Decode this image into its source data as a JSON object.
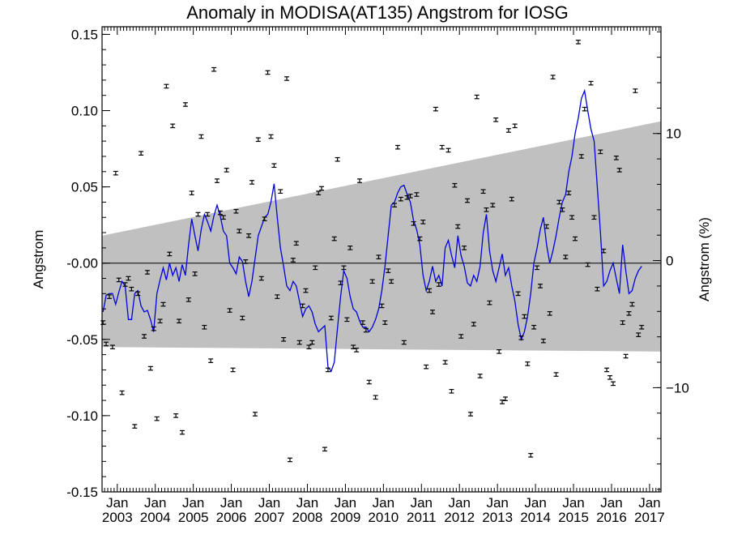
{
  "chart_data": {
    "type": "scatter",
    "title": "Anomaly in MODISA(AT135) Angstrom for IOSG",
    "ylabel": "Angstrom",
    "ylabel_right": "Angstrom (%)",
    "ylim": [
      -0.15,
      0.155
    ],
    "ylim_right_pct": [
      -18.2,
      18.4
    ],
    "yticks": [
      0.15,
      0.1,
      0.05,
      0.0,
      -0.05,
      -0.1,
      -0.15
    ],
    "ytick_labels": [
      "0.15",
      "0.10",
      "0.05",
      "-0.00",
      "-0.05",
      "-0.10",
      "-0.15"
    ],
    "yticks_right": [
      10,
      0,
      -10
    ],
    "ytick_labels_right": [
      "10",
      "0",
      "−10"
    ],
    "xlim": [
      2002.6,
      2017.3
    ],
    "xtick_month_label": "Jan",
    "xtick_years": [
      "2003",
      "2004",
      "2005",
      "2006",
      "2007",
      "2008",
      "2009",
      "2010",
      "2011",
      "2012",
      "2013",
      "2014",
      "2015",
      "2016",
      "2017"
    ],
    "grid": false,
    "colors": {
      "line": "#0000dd",
      "band": "#c0c0c0",
      "points": "#000000"
    },
    "band": {
      "x": [
        2002.6,
        2017.3
      ],
      "upper": [
        0.018,
        0.093
      ],
      "lower": [
        -0.055,
        -0.058
      ]
    },
    "points": [
      [
        2002.625,
        -0.039
      ],
      [
        2002.708,
        -0.053
      ],
      [
        2002.792,
        -0.022
      ],
      [
        2002.875,
        -0.055
      ],
      [
        2002.958,
        0.059
      ],
      [
        2003.042,
        -0.011
      ],
      [
        2003.125,
        -0.085
      ],
      [
        2003.208,
        -0.014
      ],
      [
        2003.292,
        -0.01
      ],
      [
        2003.375,
        -0.017
      ],
      [
        2003.458,
        -0.107
      ],
      [
        2003.542,
        -0.02
      ],
      [
        2003.625,
        0.072
      ],
      [
        2003.708,
        -0.048
      ],
      [
        2003.792,
        -0.006
      ],
      [
        2003.875,
        -0.069
      ],
      [
        2003.958,
        -0.043
      ],
      [
        2004.042,
        -0.102
      ],
      [
        2004.125,
        -0.038
      ],
      [
        2004.208,
        -0.027
      ],
      [
        2004.292,
        0.116
      ],
      [
        2004.375,
        0.006
      ],
      [
        2004.458,
        0.09
      ],
      [
        2004.542,
        -0.1
      ],
      [
        2004.625,
        -0.038
      ],
      [
        2004.708,
        -0.111
      ],
      [
        2004.792,
        0.104
      ],
      [
        2004.875,
        -0.024
      ],
      [
        2004.958,
        0.046
      ],
      [
        2005.042,
        -0.007
      ],
      [
        2005.125,
        0.032
      ],
      [
        2005.208,
        0.083
      ],
      [
        2005.292,
        -0.042
      ],
      [
        2005.375,
        0.032
      ],
      [
        2005.458,
        -0.064
      ],
      [
        2005.542,
        0.127
      ],
      [
        2005.625,
        0.054
      ],
      [
        2005.708,
        0.033
      ],
      [
        2005.792,
        0.03
      ],
      [
        2005.875,
        0.061
      ],
      [
        2005.958,
        -0.031
      ],
      [
        2006.042,
        -0.07
      ],
      [
        2006.125,
        0.034
      ],
      [
        2006.208,
        0.021
      ],
      [
        2006.292,
        -0.036
      ],
      [
        2006.375,
        0.001
      ],
      [
        2006.458,
        0.018
      ],
      [
        2006.542,
        0.053
      ],
      [
        2006.625,
        -0.099
      ],
      [
        2006.708,
        0.081
      ],
      [
        2006.792,
        -0.01
      ],
      [
        2006.875,
        0.029
      ],
      [
        2006.958,
        0.125
      ],
      [
        2007.042,
        0.083
      ],
      [
        2007.125,
        0.064
      ],
      [
        2007.208,
        -0.022
      ],
      [
        2007.292,
        0.047
      ],
      [
        2007.375,
        -0.05
      ],
      [
        2007.458,
        0.121
      ],
      [
        2007.542,
        -0.129
      ],
      [
        2007.625,
        0.002
      ],
      [
        2007.708,
        0.013
      ],
      [
        2007.792,
        -0.052
      ],
      [
        2007.875,
        -0.028
      ],
      [
        2007.958,
        -0.018
      ],
      [
        2008.042,
        -0.055
      ],
      [
        2008.125,
        -0.052
      ],
      [
        2008.208,
        -0.003
      ],
      [
        2008.292,
        0.046
      ],
      [
        2008.375,
        0.049
      ],
      [
        2008.458,
        -0.122
      ],
      [
        2008.542,
        -0.07
      ],
      [
        2008.625,
        -0.036
      ],
      [
        2008.708,
        0.016
      ],
      [
        2008.792,
        0.068
      ],
      [
        2008.875,
        -0.013
      ],
      [
        2008.958,
        -0.003
      ],
      [
        2009.042,
        -0.037
      ],
      [
        2009.125,
        0.01
      ],
      [
        2009.208,
        -0.055
      ],
      [
        2009.292,
        -0.057
      ],
      [
        2009.375,
        0.054
      ],
      [
        2009.458,
        -0.039
      ],
      [
        2009.542,
        -0.044
      ],
      [
        2009.625,
        -0.078
      ],
      [
        2009.708,
        -0.012
      ],
      [
        2009.792,
        -0.088
      ],
      [
        2009.875,
        0.004
      ],
      [
        2009.958,
        -0.028
      ],
      [
        2010.042,
        -0.039
      ],
      [
        2010.125,
        -0.005
      ],
      [
        2010.208,
        -0.012
      ],
      [
        2010.292,
        0.038
      ],
      [
        2010.375,
        0.076
      ],
      [
        2010.458,
        0.042
      ],
      [
        2010.542,
        -0.052
      ],
      [
        2010.625,
        0.043
      ],
      [
        2010.708,
        0.044
      ],
      [
        2010.792,
        0.026
      ],
      [
        2010.875,
        0.045
      ],
      [
        2010.958,
        0.016
      ],
      [
        2011.042,
        0.027
      ],
      [
        2011.125,
        -0.068
      ],
      [
        2011.208,
        -0.018
      ],
      [
        2011.292,
        -0.032
      ],
      [
        2011.375,
        0.101
      ],
      [
        2011.458,
        -0.014
      ],
      [
        2011.542,
        0.076
      ],
      [
        2011.625,
        -0.065
      ],
      [
        2011.708,
        0.074
      ],
      [
        2011.792,
        -0.084
      ],
      [
        2011.875,
        0.051
      ],
      [
        2011.958,
        0.024
      ],
      [
        2012.042,
        -0.048
      ],
      [
        2012.125,
        0.01
      ],
      [
        2012.208,
        0.041
      ],
      [
        2012.292,
        -0.099
      ],
      [
        2012.375,
        -0.04
      ],
      [
        2012.458,
        0.109
      ],
      [
        2012.542,
        -0.074
      ],
      [
        2012.625,
        0.047
      ],
      [
        2012.708,
        0.035
      ],
      [
        2012.792,
        -0.026
      ],
      [
        2012.875,
        0.038
      ],
      [
        2012.958,
        0.094
      ],
      [
        2013.042,
        -0.058
      ],
      [
        2013.125,
        -0.091
      ],
      [
        2013.208,
        -0.089
      ],
      [
        2013.292,
        0.087
      ],
      [
        2013.375,
        0.042
      ],
      [
        2013.458,
        0.09
      ],
      [
        2013.542,
        -0.02
      ],
      [
        2013.625,
        -0.049
      ],
      [
        2013.708,
        -0.035
      ],
      [
        2013.792,
        -0.066
      ],
      [
        2013.875,
        -0.126
      ],
      [
        2013.958,
        -0.042
      ],
      [
        2014.042,
        -0.003
      ],
      [
        2014.125,
        -0.015
      ],
      [
        2014.208,
        -0.051
      ],
      [
        2014.292,
        0.024
      ],
      [
        2014.375,
        -0.033
      ],
      [
        2014.458,
        0.122
      ],
      [
        2014.542,
        -0.073
      ],
      [
        2014.625,
        0.04
      ],
      [
        2014.708,
        0.035
      ],
      [
        2014.792,
        0.004
      ],
      [
        2014.875,
        0.046
      ],
      [
        2014.958,
        0.03
      ],
      [
        2015.042,
        0.016
      ],
      [
        2015.125,
        0.145
      ],
      [
        2015.208,
        0.07
      ],
      [
        2015.292,
        0.101
      ],
      [
        2015.375,
        -0.001
      ],
      [
        2015.458,
        0.118
      ],
      [
        2015.542,
        0.03
      ],
      [
        2015.625,
        -0.017
      ],
      [
        2015.708,
        0.073
      ],
      [
        2015.792,
        0.008
      ],
      [
        2015.875,
        -0.07
      ],
      [
        2015.958,
        -0.075
      ],
      [
        2016.042,
        -0.079
      ],
      [
        2016.125,
        0.069
      ],
      [
        2016.208,
        0.061
      ],
      [
        2016.292,
        -0.039
      ],
      [
        2016.375,
        -0.061
      ],
      [
        2016.458,
        -0.033
      ],
      [
        2016.542,
        -0.027
      ],
      [
        2016.625,
        0.113
      ],
      [
        2016.708,
        -0.047
      ],
      [
        2016.792,
        -0.042
      ]
    ],
    "line": [
      [
        2002.625,
        -0.032
      ],
      [
        2002.708,
        -0.021
      ],
      [
        2002.792,
        -0.02
      ],
      [
        2002.875,
        -0.02
      ],
      [
        2002.958,
        -0.027
      ],
      [
        2003.042,
        -0.019
      ],
      [
        2003.125,
        -0.012
      ],
      [
        2003.208,
        -0.015
      ],
      [
        2003.292,
        -0.037
      ],
      [
        2003.375,
        -0.037
      ],
      [
        2003.458,
        -0.02
      ],
      [
        2003.542,
        -0.018
      ],
      [
        2003.625,
        -0.028
      ],
      [
        2003.708,
        -0.032
      ],
      [
        2003.792,
        -0.031
      ],
      [
        2003.875,
        -0.037
      ],
      [
        2003.958,
        -0.045
      ],
      [
        2004.042,
        -0.02
      ],
      [
        2004.125,
        -0.011
      ],
      [
        2004.208,
        -0.003
      ],
      [
        2004.292,
        -0.011
      ],
      [
        2004.375,
        0.0
      ],
      [
        2004.458,
        -0.008
      ],
      [
        2004.542,
        -0.003
      ],
      [
        2004.625,
        -0.012
      ],
      [
        2004.708,
        -0.001
      ],
      [
        2004.792,
        -0.008
      ],
      [
        2004.875,
        0.012
      ],
      [
        2004.958,
        0.029
      ],
      [
        2005.042,
        0.018
      ],
      [
        2005.125,
        0.008
      ],
      [
        2005.208,
        0.022
      ],
      [
        2005.292,
        0.032
      ],
      [
        2005.375,
        0.027
      ],
      [
        2005.458,
        0.021
      ],
      [
        2005.542,
        0.031
      ],
      [
        2005.625,
        0.038
      ],
      [
        2005.708,
        0.031
      ],
      [
        2005.792,
        0.021
      ],
      [
        2005.875,
        0.018
      ],
      [
        2005.958,
        0.0
      ],
      [
        2006.042,
        -0.003
      ],
      [
        2006.125,
        -0.007
      ],
      [
        2006.208,
        0.004
      ],
      [
        2006.292,
        0.001
      ],
      [
        2006.375,
        -0.012
      ],
      [
        2006.458,
        -0.022
      ],
      [
        2006.542,
        -0.012
      ],
      [
        2006.625,
        0.003
      ],
      [
        2006.708,
        0.018
      ],
      [
        2006.792,
        0.024
      ],
      [
        2006.875,
        0.03
      ],
      [
        2006.958,
        0.032
      ],
      [
        2007.042,
        0.04
      ],
      [
        2007.125,
        0.052
      ],
      [
        2007.208,
        0.03
      ],
      [
        2007.292,
        0.01
      ],
      [
        2007.375,
        -0.002
      ],
      [
        2007.458,
        -0.015
      ],
      [
        2007.542,
        -0.018
      ],
      [
        2007.625,
        -0.012
      ],
      [
        2007.708,
        -0.015
      ],
      [
        2007.792,
        -0.025
      ],
      [
        2007.875,
        -0.035
      ],
      [
        2007.958,
        -0.03
      ],
      [
        2008.042,
        -0.028
      ],
      [
        2008.125,
        -0.032
      ],
      [
        2008.208,
        -0.04
      ],
      [
        2008.292,
        -0.045
      ],
      [
        2008.375,
        -0.043
      ],
      [
        2008.458,
        -0.041
      ],
      [
        2008.542,
        -0.068
      ],
      [
        2008.625,
        -0.071
      ],
      [
        2008.708,
        -0.065
      ],
      [
        2008.792,
        -0.043
      ],
      [
        2008.875,
        -0.022
      ],
      [
        2008.958,
        -0.005
      ],
      [
        2009.042,
        -0.01
      ],
      [
        2009.125,
        -0.022
      ],
      [
        2009.208,
        -0.03
      ],
      [
        2009.292,
        -0.032
      ],
      [
        2009.375,
        -0.038
      ],
      [
        2009.458,
        -0.042
      ],
      [
        2009.542,
        -0.042
      ],
      [
        2009.625,
        -0.045
      ],
      [
        2009.708,
        -0.042
      ],
      [
        2009.792,
        -0.037
      ],
      [
        2009.875,
        -0.03
      ],
      [
        2009.958,
        -0.018
      ],
      [
        2010.042,
        -0.002
      ],
      [
        2010.125,
        0.018
      ],
      [
        2010.208,
        0.038
      ],
      [
        2010.292,
        0.04
      ],
      [
        2010.375,
        0.046
      ],
      [
        2010.458,
        0.05
      ],
      [
        2010.542,
        0.051
      ],
      [
        2010.625,
        0.045
      ],
      [
        2010.708,
        0.04
      ],
      [
        2010.792,
        0.028
      ],
      [
        2010.875,
        0.022
      ],
      [
        2010.958,
        0.012
      ],
      [
        2011.042,
        -0.008
      ],
      [
        2011.125,
        -0.018
      ],
      [
        2011.208,
        -0.012
      ],
      [
        2011.292,
        -0.002
      ],
      [
        2011.375,
        -0.012
      ],
      [
        2011.458,
        -0.008
      ],
      [
        2011.542,
        -0.015
      ],
      [
        2011.625,
        0.01
      ],
      [
        2011.708,
        0.015
      ],
      [
        2011.792,
        0.005
      ],
      [
        2011.875,
        -0.003
      ],
      [
        2011.958,
        0.018
      ],
      [
        2012.042,
        0.005
      ],
      [
        2012.125,
        -0.002
      ],
      [
        2012.208,
        -0.013
      ],
      [
        2012.292,
        -0.015
      ],
      [
        2012.375,
        -0.008
      ],
      [
        2012.458,
        -0.012
      ],
      [
        2012.542,
        -0.002
      ],
      [
        2012.625,
        0.02
      ],
      [
        2012.708,
        0.032
      ],
      [
        2012.792,
        0.008
      ],
      [
        2012.875,
        -0.005
      ],
      [
        2012.958,
        -0.012
      ],
      [
        2013.042,
        -0.003
      ],
      [
        2013.125,
        0.006
      ],
      [
        2013.208,
        -0.008
      ],
      [
        2013.292,
        -0.003
      ],
      [
        2013.375,
        -0.015
      ],
      [
        2013.458,
        -0.025
      ],
      [
        2013.542,
        -0.04
      ],
      [
        2013.625,
        -0.05
      ],
      [
        2013.708,
        -0.045
      ],
      [
        2013.792,
        -0.035
      ],
      [
        2013.875,
        -0.02
      ],
      [
        2013.958,
        0.0
      ],
      [
        2014.042,
        0.01
      ],
      [
        2014.125,
        0.022
      ],
      [
        2014.208,
        0.03
      ],
      [
        2014.292,
        0.012
      ],
      [
        2014.375,
        0.0
      ],
      [
        2014.458,
        0.008
      ],
      [
        2014.542,
        0.018
      ],
      [
        2014.625,
        0.03
      ],
      [
        2014.708,
        0.04
      ],
      [
        2014.792,
        0.045
      ],
      [
        2014.875,
        0.06
      ],
      [
        2014.958,
        0.07
      ],
      [
        2015.042,
        0.085
      ],
      [
        2015.125,
        0.095
      ],
      [
        2015.208,
        0.108
      ],
      [
        2015.292,
        0.113
      ],
      [
        2015.375,
        0.1
      ],
      [
        2015.458,
        0.088
      ],
      [
        2015.542,
        0.08
      ],
      [
        2015.625,
        0.05
      ],
      [
        2015.708,
        0.02
      ],
      [
        2015.792,
        -0.015
      ],
      [
        2015.875,
        -0.012
      ],
      [
        2015.958,
        -0.005
      ],
      [
        2016.042,
        0.0
      ],
      [
        2016.125,
        -0.01
      ],
      [
        2016.208,
        -0.02
      ],
      [
        2016.292,
        0.012
      ],
      [
        2016.375,
        -0.005
      ],
      [
        2016.458,
        -0.02
      ],
      [
        2016.542,
        -0.018
      ],
      [
        2016.625,
        -0.01
      ],
      [
        2016.708,
        -0.005
      ],
      [
        2016.792,
        -0.002
      ]
    ]
  }
}
